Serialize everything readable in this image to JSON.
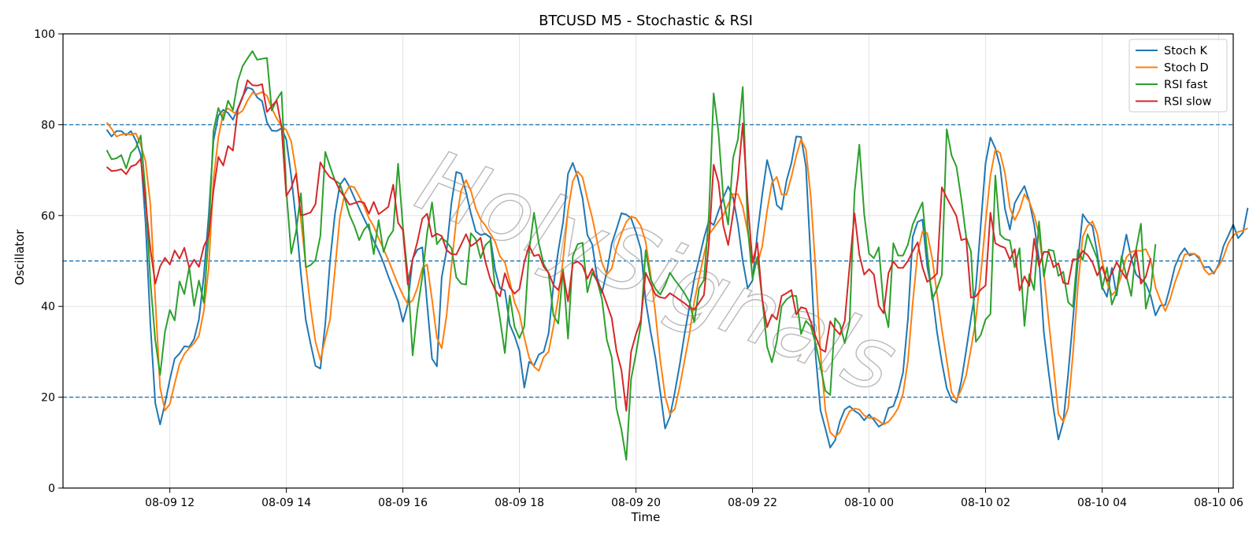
{
  "chart_data": {
    "type": "line",
    "title": "BTCUSD M5 - Stochastic & RSI",
    "xlabel": "Time",
    "ylabel": "Oscillator",
    "ylim": [
      0,
      100
    ],
    "y_ticks": [
      0,
      20,
      40,
      60,
      80,
      100
    ],
    "x_start": "2025-08-09 10:55",
    "x_step_minutes": 5,
    "xlim": [
      "2025-08-09 10:10",
      "2025-08-10 06:15"
    ],
    "x_ticks": [
      {
        "label": "08-09 12",
        "time": "2025-08-09 12:00"
      },
      {
        "label": "08-09 14",
        "time": "2025-08-09 14:00"
      },
      {
        "label": "08-09 16",
        "time": "2025-08-09 16:00"
      },
      {
        "label": "08-09 18",
        "time": "2025-08-09 18:00"
      },
      {
        "label": "08-09 20",
        "time": "2025-08-09 20:00"
      },
      {
        "label": "08-09 22",
        "time": "2025-08-09 22:00"
      },
      {
        "label": "08-10 00",
        "time": "2025-08-10 00:00"
      },
      {
        "label": "08-10 02",
        "time": "2025-08-10 02:00"
      },
      {
        "label": "08-10 04",
        "time": "2025-08-10 04:00"
      },
      {
        "label": "08-10 06",
        "time": "2025-08-10 06:00"
      }
    ],
    "reference_lines": [
      {
        "y": 80,
        "style": "dashed",
        "color": "#1f77b4"
      },
      {
        "y": 50,
        "style": "dashed",
        "color": "#1f77b4"
      },
      {
        "y": 20,
        "style": "dashed",
        "color": "#1f77b4"
      }
    ],
    "grid": true,
    "legend_position": "top-right",
    "watermark": "HolySignals",
    "series": [
      {
        "name": "Stoch K",
        "color": "#1f77b4",
        "values": [
          78.9,
          77.4,
          78.6,
          78.6,
          77.7,
          78.6,
          76.5,
          73.4,
          58.5,
          36.0,
          18.7,
          14.0,
          18.6,
          23.9,
          28.5,
          29.6,
          31.2,
          31.1,
          32.8,
          37.1,
          46.7,
          60.0,
          76.5,
          82.0,
          83.3,
          82.6,
          81.1,
          83.6,
          86.2,
          88.2,
          87.8,
          86.0,
          85.2,
          80.5,
          78.7,
          78.6,
          79.2,
          76.7,
          68.7,
          58.8,
          47.2,
          37.0,
          31.7,
          26.9,
          26.3,
          36.0,
          50.0,
          60.3,
          66.7,
          68.2,
          66.3,
          63.9,
          61.6,
          59.3,
          57.1,
          54.4,
          52.2,
          49.6,
          46.6,
          43.9,
          41.1,
          36.6,
          40.5,
          50.5,
          52.5,
          53.0,
          40.5,
          28.5,
          26.8,
          46.4,
          52.3,
          62.8,
          69.6,
          69.2,
          65.1,
          60.5,
          56.5,
          55.7,
          56.0,
          55.2,
          48.0,
          44.0,
          43.5,
          36.0,
          33.5,
          30.2,
          22.1,
          27.8,
          27.0,
          29.4,
          30.0,
          34.0,
          44.6,
          52.2,
          58.6,
          69.2,
          71.6,
          68.4,
          63.8,
          55.7,
          53.6,
          46.2,
          43.0,
          47.6,
          53.8,
          57.0,
          60.5,
          60.2,
          59.4,
          56.3,
          52.6,
          41.2,
          34.5,
          28.8,
          21.2,
          13.1,
          15.7,
          21.1,
          27.1,
          33.8,
          39.9,
          46.0,
          50.4,
          55.0,
          58.8,
          57.9,
          61.0,
          64.0,
          66.4,
          64.0,
          58.0,
          50.0,
          44.0,
          45.7,
          56.0,
          64.6,
          72.2,
          68.3,
          62.3,
          61.3,
          67.6,
          71.5,
          77.4,
          77.3,
          70.8,
          50.0,
          29.3,
          17.1,
          13.1,
          8.9,
          10.5,
          14.7,
          17.3,
          18.0,
          17.0,
          16.3,
          14.9,
          16.2,
          15.0,
          13.5,
          14.2,
          17.6,
          18.0,
          21.0,
          25.4,
          37.1,
          55.3,
          58.6,
          59.1,
          48.7,
          43.0,
          34.3,
          27.7,
          22.0,
          19.4,
          18.8,
          23.5,
          30.3,
          37.4,
          44.2,
          57.9,
          71.5,
          77.2,
          74.8,
          70.8,
          61.4,
          56.9,
          62.7,
          64.7,
          66.5,
          63.2,
          58.0,
          50.4,
          34.3,
          25.4,
          17.3,
          10.7,
          14.6,
          25.1,
          37.1,
          49.9,
          60.3,
          58.7,
          57.7,
          51.6,
          44.3,
          42.1,
          48.5,
          42.4,
          50.4,
          55.8,
          50.7,
          47.0,
          46.0,
          45.0,
          42.3,
          38.0,
          40.2,
          40.3,
          44.3,
          48.8,
          51.3,
          52.8,
          51.2,
          51.6,
          50.5,
          48.6,
          48.7,
          47.2,
          49.2,
          53.3,
          55.6,
          58.0,
          55.0,
          56.2,
          61.7
        ]
      },
      {
        "name": "Stoch D",
        "color": "#ff7f0e",
        "values": [
          80.5,
          79.1,
          77.4,
          77.8,
          78.0,
          77.8,
          78.1,
          75.6,
          72.0,
          62.3,
          41.6,
          22.1,
          17.1,
          18.5,
          23.0,
          27.3,
          29.5,
          30.8,
          31.9,
          33.5,
          39.0,
          48.5,
          68.0,
          77.2,
          82.6,
          83.6,
          82.8,
          82.3,
          83.1,
          85.3,
          87.0,
          86.7,
          87.2,
          86.4,
          83.6,
          81.4,
          79.7,
          78.8,
          76.3,
          69.7,
          59.1,
          49.1,
          39.6,
          32.2,
          28.2,
          32.8,
          37.1,
          48.0,
          59.5,
          64.7,
          66.5,
          66.2,
          64.2,
          62.1,
          59.4,
          57.6,
          55.0,
          52.6,
          50.2,
          47.5,
          44.8,
          42.5,
          40.5,
          41.3,
          44.1,
          48.4,
          49.2,
          41.5,
          33.1,
          30.8,
          38.0,
          49.0,
          59.1,
          65.5,
          67.8,
          65.5,
          61.6,
          59.1,
          57.8,
          56.0,
          54.2,
          51.0,
          49.7,
          45.5,
          40.9,
          38.3,
          33.1,
          28.7,
          26.7,
          25.8,
          28.8,
          30.0,
          35.6,
          41.9,
          50.5,
          61.1,
          67.6,
          69.7,
          68.4,
          63.7,
          59.5,
          54.3,
          49.6,
          47.0,
          48.3,
          52.9,
          56.0,
          58.6,
          59.8,
          59.4,
          57.7,
          54.2,
          47.1,
          38.6,
          28.2,
          20.2,
          16.3,
          17.4,
          22.3,
          28.0,
          33.8,
          41.0,
          46.2,
          51.4,
          55.8,
          57.2,
          58.7,
          60.1,
          62.5,
          64.7,
          64.7,
          61.9,
          56.5,
          50.8,
          49.3,
          53.2,
          61.0,
          67.2,
          68.5,
          64.6,
          64.6,
          68.5,
          73.1,
          76.8,
          74.5,
          64.0,
          48.1,
          29.7,
          17.1,
          12.3,
          11.2,
          12.3,
          14.7,
          16.9,
          17.5,
          17.3,
          16.0,
          15.4,
          15.5,
          14.8,
          14.0,
          14.6,
          15.9,
          17.6,
          20.8,
          27.9,
          40.7,
          51.7,
          56.5,
          56.1,
          50.6,
          42.7,
          35.0,
          28.1,
          21.1,
          19.4,
          21.7,
          24.8,
          30.7,
          37.1,
          46.9,
          58.5,
          68.8,
          74.5,
          73.8,
          69.3,
          61.7,
          59.0,
          61.2,
          64.7,
          63.1,
          60.1,
          55.8,
          47.5,
          36.7,
          26.7,
          16.3,
          14.6,
          17.6,
          29.6,
          44.3,
          55.3,
          57.7,
          58.7,
          56.0,
          50.0,
          45.2,
          42.5,
          43.6,
          46.9,
          50.8,
          52.0,
          52.3,
          52.2,
          52.6,
          50.3,
          44.2,
          41.3,
          39.0,
          41.5,
          45.3,
          48.2,
          51.4,
          51.6,
          51.6,
          50.9,
          48.2,
          47.0,
          47.5,
          48.8,
          50.9,
          53.9,
          55.6,
          56.4,
          56.7,
          57.2
        ]
      },
      {
        "name": "RSI fast",
        "color": "#2ca02c",
        "values": [
          74.4,
          72.4,
          72.6,
          73.3,
          70.4,
          73.8,
          74.9,
          77.6,
          65.1,
          45.4,
          32.5,
          24.9,
          34.4,
          39.2,
          36.9,
          45.5,
          42.7,
          48.6,
          40.1,
          45.7,
          40.8,
          55.9,
          78.7,
          83.7,
          81.0,
          85.3,
          83.2,
          89.6,
          92.9,
          94.6,
          96.2,
          94.3,
          94.5,
          94.7,
          83.1,
          85.5,
          87.2,
          65.4,
          51.6,
          56.5,
          64.9,
          48.6,
          49.1,
          50.2,
          55.5,
          74.0,
          70.8,
          67.7,
          67.0,
          63.9,
          60.1,
          57.7,
          54.6,
          56.9,
          58.1,
          51.5,
          59.0,
          52.0,
          55.1,
          56.7,
          71.4,
          57.5,
          46.9,
          29.2,
          39.3,
          46.5,
          56.2,
          62.9,
          53.7,
          55.1,
          54.2,
          52.8,
          46.4,
          45.0,
          44.8,
          56.1,
          54.8,
          50.6,
          53.5,
          54.5,
          43.9,
          37.3,
          29.7,
          42.4,
          35.5,
          33.0,
          35.6,
          52.2,
          60.6,
          53.8,
          49.3,
          47.3,
          38.0,
          36.2,
          48.1,
          32.9,
          51.1,
          53.7,
          54.0,
          43.1,
          47.4,
          45.6,
          41.6,
          32.6,
          28.8,
          17.5,
          12.9,
          6.2,
          24.0,
          29.6,
          36.1,
          52.4,
          46.0,
          43.9,
          42.6,
          44.7,
          47.4,
          45.8,
          44.4,
          42.9,
          41.0,
          36.5,
          44.0,
          45.8,
          59.8,
          86.9,
          78.2,
          63.6,
          58.0,
          72.7,
          76.8,
          88.3,
          57.5,
          46.1,
          50.9,
          41.7,
          31.1,
          27.7,
          32.3,
          40.1,
          41.5,
          42.3,
          42.3,
          33.9,
          36.8,
          35.6,
          31.8,
          26.7,
          21.4,
          20.5,
          37.4,
          36.0,
          31.9,
          36.6,
          65.0,
          75.6,
          60.3,
          51.6,
          50.6,
          53.0,
          40.2,
          35.4,
          53.9,
          51.2,
          51.2,
          53.6,
          58.0,
          60.5,
          62.9,
          51.7,
          41.5,
          43.9,
          46.9,
          79.0,
          73.2,
          70.8,
          63.7,
          55.2,
          52.1,
          32.2,
          33.7,
          37.1,
          38.3,
          68.8,
          55.8,
          54.8,
          54.5,
          48.6,
          52.8,
          35.7,
          47.1,
          43.6,
          58.7,
          46.6,
          52.5,
          52.2,
          46.7,
          47.6,
          40.9,
          39.9,
          52.4,
          50.2,
          55.9,
          53.2,
          50.5,
          43.8,
          48.6,
          40.4,
          43.2,
          51.1,
          46.7,
          42.3,
          52.6,
          58.2,
          39.5,
          43.7,
          53.7
        ]
      },
      {
        "name": "RSI slow",
        "color": "#d62728",
        "values": [
          70.7,
          69.8,
          69.9,
          70.2,
          69.1,
          70.8,
          71.2,
          72.5,
          63.1,
          52.6,
          45.0,
          48.8,
          50.7,
          49.2,
          52.3,
          50.5,
          52.9,
          48.5,
          50.3,
          48.7,
          53.2,
          55.5,
          65.5,
          72.9,
          71.0,
          75.3,
          74.3,
          83.4,
          86.0,
          89.8,
          88.7,
          88.6,
          88.9,
          82.8,
          84.1,
          85.3,
          79.5,
          64.3,
          66.1,
          69.2,
          60.0,
          60.3,
          60.7,
          62.5,
          71.7,
          69.8,
          68.4,
          67.8,
          65.5,
          64.1,
          62.4,
          62.7,
          63.1,
          62.8,
          60.4,
          63.0,
          60.3,
          61.1,
          61.9,
          66.8,
          58.4,
          56.8,
          44.8,
          50.3,
          54.3,
          59.3,
          60.4,
          55.3,
          56.0,
          55.5,
          52.4,
          51.5,
          51.4,
          53.6,
          55.9,
          53.3,
          54.0,
          55.1,
          49.8,
          46.0,
          43.6,
          42.2,
          47.3,
          44.2,
          42.8,
          43.8,
          49.7,
          53.4,
          51.1,
          51.4,
          48.7,
          47.4,
          44.7,
          43.6,
          47.4,
          41.1,
          49.4,
          49.9,
          48.9,
          46.1,
          48.3,
          45.5,
          43.5,
          40.5,
          37.4,
          30.1,
          26.0,
          17.0,
          30.0,
          33.9,
          37.0,
          47.4,
          45.0,
          42.6,
          42.0,
          41.8,
          42.9,
          42.2,
          41.4,
          40.7,
          39.8,
          39.3,
          40.8,
          42.5,
          53.6,
          71.2,
          67.3,
          57.7,
          53.5,
          60.4,
          68.4,
          80.3,
          63.1,
          49.6,
          54.0,
          41.6,
          35.4,
          38.2,
          37.1,
          42.3,
          42.9,
          43.6,
          38.2,
          39.8,
          39.5,
          36.6,
          33.4,
          30.6,
          30.0,
          36.7,
          35.0,
          33.8,
          36.8,
          49.0,
          60.5,
          51.4,
          47.0,
          48.2,
          47.0,
          40.1,
          38.5,
          47.3,
          49.9,
          48.5,
          48.5,
          50.0,
          52.1,
          54.1,
          48.6,
          45.4,
          46.2,
          47.2,
          66.2,
          63.9,
          61.9,
          59.9,
          54.6,
          54.9,
          41.9,
          42.2,
          43.7,
          44.6,
          60.6,
          53.9,
          53.3,
          52.9,
          50.3,
          52.6,
          43.5,
          46.6,
          44.5,
          54.9,
          48.9,
          52.0,
          52.0,
          48.6,
          49.5,
          45.2,
          44.9,
          50.4,
          50.3,
          52.2,
          51.3,
          49.7,
          46.8,
          48.8,
          45.5,
          47.3,
          49.7,
          47.7,
          46.1,
          50.1,
          52.3,
          45.0,
          46.5,
          50.6
        ]
      }
    ]
  }
}
